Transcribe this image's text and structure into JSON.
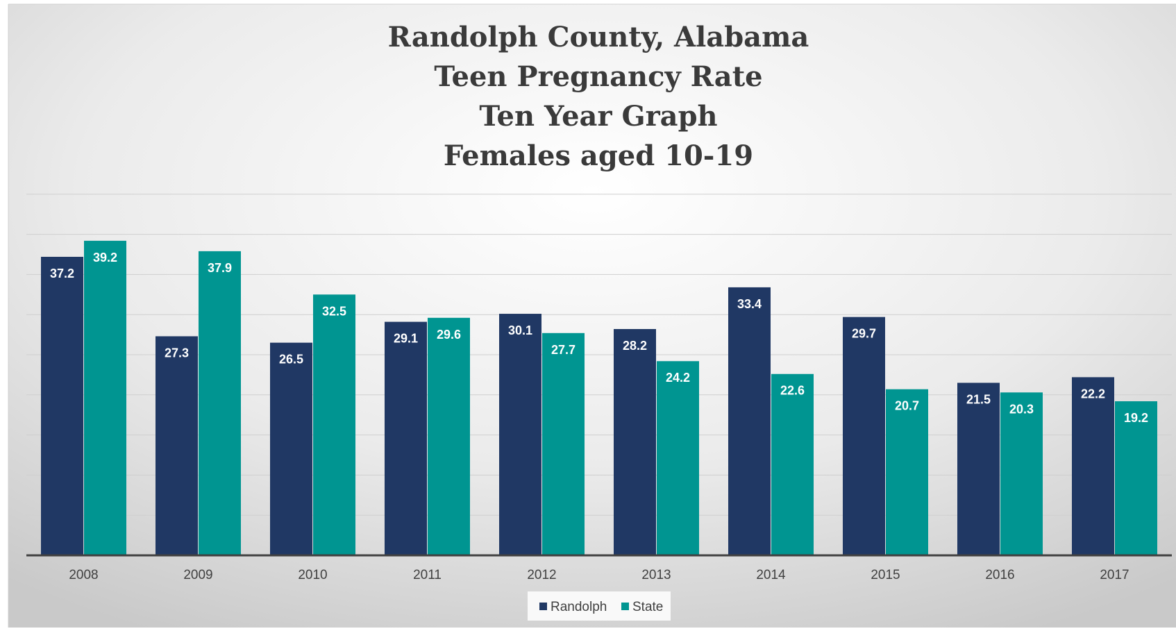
{
  "chart_data": {
    "type": "bar",
    "title": [
      "Randolph County, Alabama",
      "Teen Pregnancy Rate",
      "Ten Year Graph",
      "Females aged 10-19"
    ],
    "xlabel": "",
    "ylabel": "",
    "categories": [
      "2008",
      "2009",
      "2010",
      "2011",
      "2012",
      "2013",
      "2014",
      "2015",
      "2016",
      "2017"
    ],
    "series": [
      {
        "name": "Randolph",
        "color": "#203864",
        "values": [
          37.2,
          27.3,
          26.5,
          29.1,
          30.1,
          28.2,
          33.4,
          29.7,
          21.5,
          22.2
        ]
      },
      {
        "name": "State",
        "color": "#009591",
        "values": [
          39.2,
          37.9,
          32.5,
          29.6,
          27.7,
          24.2,
          22.6,
          20.7,
          20.3,
          19.2
        ]
      }
    ],
    "ylim": [
      0,
      45
    ],
    "grid": true,
    "legend": "bottom",
    "data_labels": true
  }
}
